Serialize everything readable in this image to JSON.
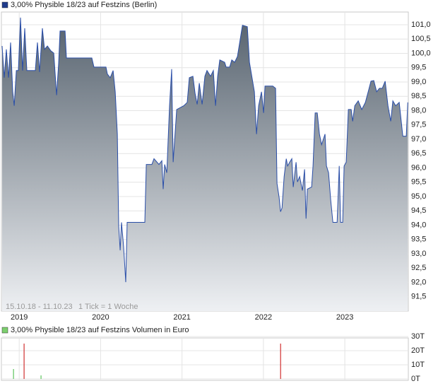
{
  "chart_data": [
    {
      "type": "area",
      "title": "3,00% Physible 18/23 auf Festzins (Berlin)",
      "legend_color": "#1f3c8c",
      "period": "15.10.18 - 11.10.23",
      "tick_note": "1 Tick = 1 Woche",
      "line_color": "#2a4ea8",
      "fill_top": "#56626e",
      "fill_bottom": "#eef0f3",
      "grid": true,
      "xlim": [
        2018.79,
        2023.78
      ],
      "xticks": [
        2019,
        2020,
        2021,
        2022,
        2023
      ],
      "ylim": [
        91.0,
        101.42
      ],
      "yticks": [
        {
          "value": 91.5,
          "label": "91,5"
        },
        {
          "value": 92.0,
          "label": "92,0"
        },
        {
          "value": 92.5,
          "label": "92,5"
        },
        {
          "value": 93.0,
          "label": "93,0"
        },
        {
          "value": 93.5,
          "label": "93,5"
        },
        {
          "value": 94.0,
          "label": "94,0"
        },
        {
          "value": 94.5,
          "label": "94,5"
        },
        {
          "value": 95.0,
          "label": "95,0"
        },
        {
          "value": 95.5,
          "label": "95,5"
        },
        {
          "value": 96.0,
          "label": "96,0"
        },
        {
          "value": 96.5,
          "label": "96,5"
        },
        {
          "value": 97.0,
          "label": "97,0"
        },
        {
          "value": 97.5,
          "label": "97,5"
        },
        {
          "value": 98.0,
          "label": "98,0"
        },
        {
          "value": 98.5,
          "label": "98,5"
        },
        {
          "value": 99.0,
          "label": "99,0"
        },
        {
          "value": 99.5,
          "label": "99,5"
        },
        {
          "value": 100.0,
          "label": "100,0"
        },
        {
          "value": 100.5,
          "label": "100,5"
        },
        {
          "value": 101.0,
          "label": "101,0"
        }
      ],
      "x": [
        2018.79,
        2018.816,
        2018.842,
        2018.868,
        2018.894,
        2018.92,
        2018.938,
        2018.964,
        2018.99,
        2019.016,
        2019.042,
        2019.068,
        2019.094,
        2019.198,
        2019.224,
        2019.25,
        2019.285,
        2019.311,
        2019.346,
        2019.389,
        2019.424,
        2019.459,
        2019.484,
        2019.502,
        2019.563,
        2019.58,
        2019.892,
        2019.918,
        2020.066,
        2020.083,
        2020.118,
        2020.153,
        2020.179,
        2020.205,
        2020.222,
        2020.24,
        2020.257,
        2020.283,
        2020.309,
        2020.326,
        2020.543,
        2020.561,
        2020.63,
        2020.656,
        2020.717,
        2020.752,
        2020.769,
        2020.787,
        2020.813,
        2020.847,
        2020.873,
        2020.891,
        2020.934,
        2021.021,
        2021.064,
        2021.09,
        2021.134,
        2021.16,
        2021.186,
        2021.212,
        2021.247,
        2021.281,
        2021.307,
        2021.351,
        2021.385,
        2021.412,
        2021.438,
        2021.464,
        2021.524,
        2021.542,
        2021.585,
        2021.611,
        2021.646,
        2021.681,
        2021.742,
        2021.802,
        2021.828,
        2021.889,
        2021.915,
        2021.941,
        2021.976,
        2022.002,
        2022.019,
        2022.115,
        2022.149,
        2022.167,
        2022.193,
        2022.21,
        2022.228,
        2022.254,
        2022.28,
        2022.297,
        2022.323,
        2022.349,
        2022.366,
        2022.401,
        2022.418,
        2022.444,
        2022.479,
        2022.505,
        2022.523,
        2022.54,
        2022.592,
        2022.609,
        2022.635,
        2022.661,
        2022.688,
        2022.714,
        2022.757,
        2022.774,
        2022.8,
        2022.826,
        2022.853,
        2022.905,
        2022.931,
        2022.948,
        2022.974,
        2022.991,
        2023.017,
        2023.043,
        2023.078,
        2023.096,
        2023.122,
        2023.165,
        2023.208,
        2023.252,
        2023.287,
        2023.321,
        2023.356,
        2023.391,
        2023.425,
        2023.46,
        2023.495,
        2023.53,
        2023.564,
        2023.59,
        2023.625,
        2023.668,
        2023.712,
        2023.755,
        2023.773
      ],
      "values": [
        100.26,
        99.15,
        100.14,
        99.15,
        100.38,
        98.66,
        98.17,
        99.4,
        99.4,
        101.25,
        99.4,
        100.88,
        99.4,
        99.4,
        100.38,
        99.35,
        100.88,
        100.14,
        100.26,
        100.09,
        100.01,
        98.54,
        99.65,
        100.78,
        100.78,
        99.84,
        99.84,
        99.52,
        99.52,
        99.28,
        99.15,
        99.4,
        98.66,
        97.18,
        93.98,
        93.12,
        94.1,
        93.24,
        92.01,
        94.1,
        94.1,
        96.12,
        96.12,
        96.32,
        96.12,
        96.25,
        95.26,
        96.12,
        95.83,
        98.17,
        99.45,
        96.2,
        98.04,
        98.17,
        98.29,
        99.15,
        99.2,
        98.61,
        98.22,
        98.96,
        98.22,
        99.2,
        99.4,
        99.2,
        99.4,
        98.17,
        99.2,
        99.77,
        99.69,
        99.52,
        99.52,
        99.77,
        99.69,
        99.89,
        100.98,
        100.93,
        99.69,
        98.66,
        97.18,
        98.17,
        98.66,
        97.92,
        98.86,
        98.86,
        98.78,
        95.46,
        94.97,
        94.47,
        94.6,
        95.7,
        96.32,
        96.07,
        96.2,
        96.32,
        95.33,
        96.2,
        95.51,
        95.7,
        95.21,
        95.95,
        94.23,
        95.26,
        95.33,
        96.07,
        97.92,
        97.92,
        97.18,
        96.81,
        97.18,
        96.07,
        95.83,
        94.89,
        94.1,
        94.1,
        96.07,
        94.1,
        94.1,
        96.07,
        96.2,
        98.04,
        98.04,
        97.63,
        98.17,
        98.34,
        98.04,
        98.29,
        98.66,
        99.03,
        99.05,
        98.66,
        98.78,
        98.78,
        99.03,
        98.17,
        97.63,
        98.34,
        98.17,
        98.29,
        97.11,
        97.11,
        98.29
      ]
    },
    {
      "type": "bar",
      "title": "3,00% Physible 18/23 auf Festzins Volumen in Euro",
      "legend_color": "#7ccf6e",
      "grid": true,
      "xlim": [
        2018.79,
        2023.78
      ],
      "xticks": [
        2019,
        2020,
        2021,
        2022,
        2023
      ],
      "ylim": [
        0,
        30
      ],
      "yticks": [
        {
          "value": 0,
          "label": "0T"
        },
        {
          "value": 10,
          "label": "10T"
        },
        {
          "value": 20,
          "label": "20T"
        },
        {
          "value": 30,
          "label": "30T"
        }
      ],
      "x": [
        2018.929,
        2019.059,
        2019.267,
        2022.21
      ],
      "values": [
        7,
        25,
        2.5,
        25
      ],
      "colors": [
        "#5cc45c",
        "#d03030",
        "#5cc45c",
        "#d03030"
      ]
    }
  ]
}
